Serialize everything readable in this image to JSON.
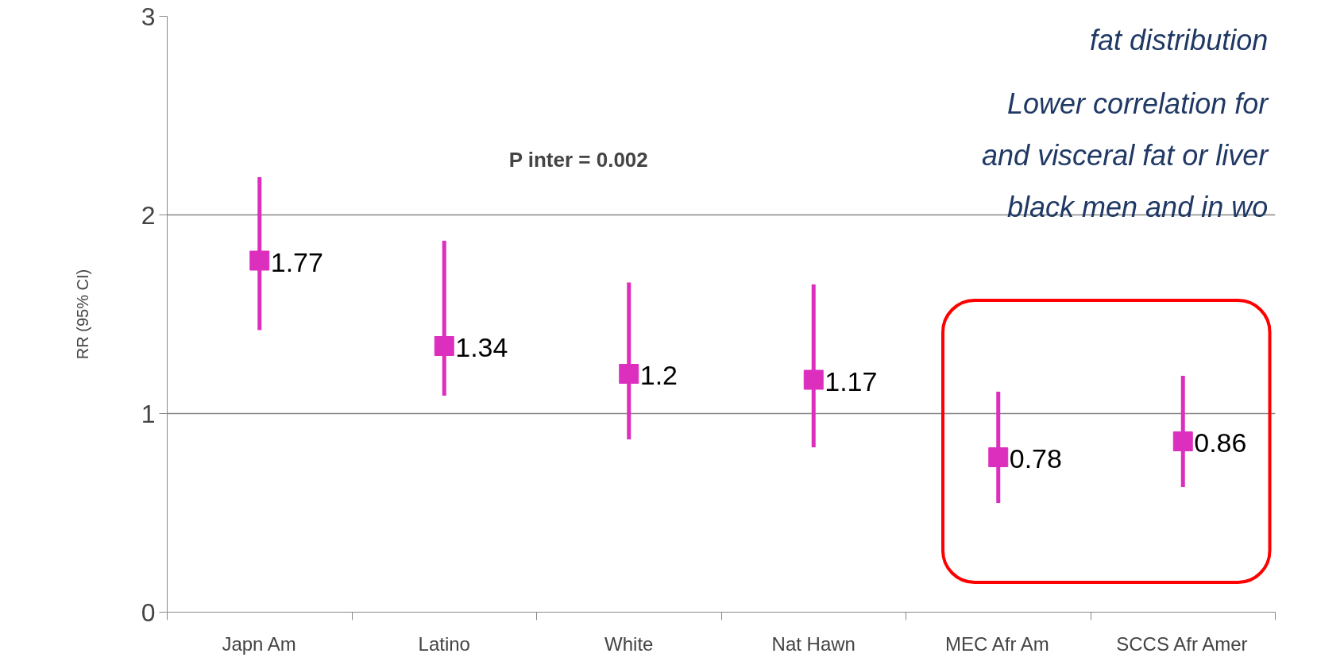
{
  "chart_data": {
    "type": "scatter",
    "ylabel": "RR (95% CI)",
    "categories": [
      "Japn Am",
      "Latino",
      "White",
      "Nat Hawn",
      "MEC Afr Am",
      "SCCS Afr Amer"
    ],
    "series": [
      {
        "color": "#dd2fbe",
        "values": [
          1.77,
          1.34,
          1.2,
          1.17,
          0.78,
          0.86
        ],
        "errors": [
          [
            1.42,
            2.19
          ],
          [
            1.09,
            1.87
          ],
          [
            0.87,
            1.66
          ],
          [
            0.83,
            1.65
          ],
          [
            0.55,
            1.11
          ],
          [
            0.63,
            1.19
          ]
        ]
      }
    ],
    "marker": "square",
    "data_labels": true,
    "ylim": [
      0,
      3
    ],
    "yticks": [
      0,
      1,
      2,
      3
    ],
    "grid": "y",
    "annotations": [
      "P inter = 0.002",
      "fat distribution",
      "Lower correlation for",
      "and visceral fat or liver",
      "black men and in wo"
    ]
  }
}
